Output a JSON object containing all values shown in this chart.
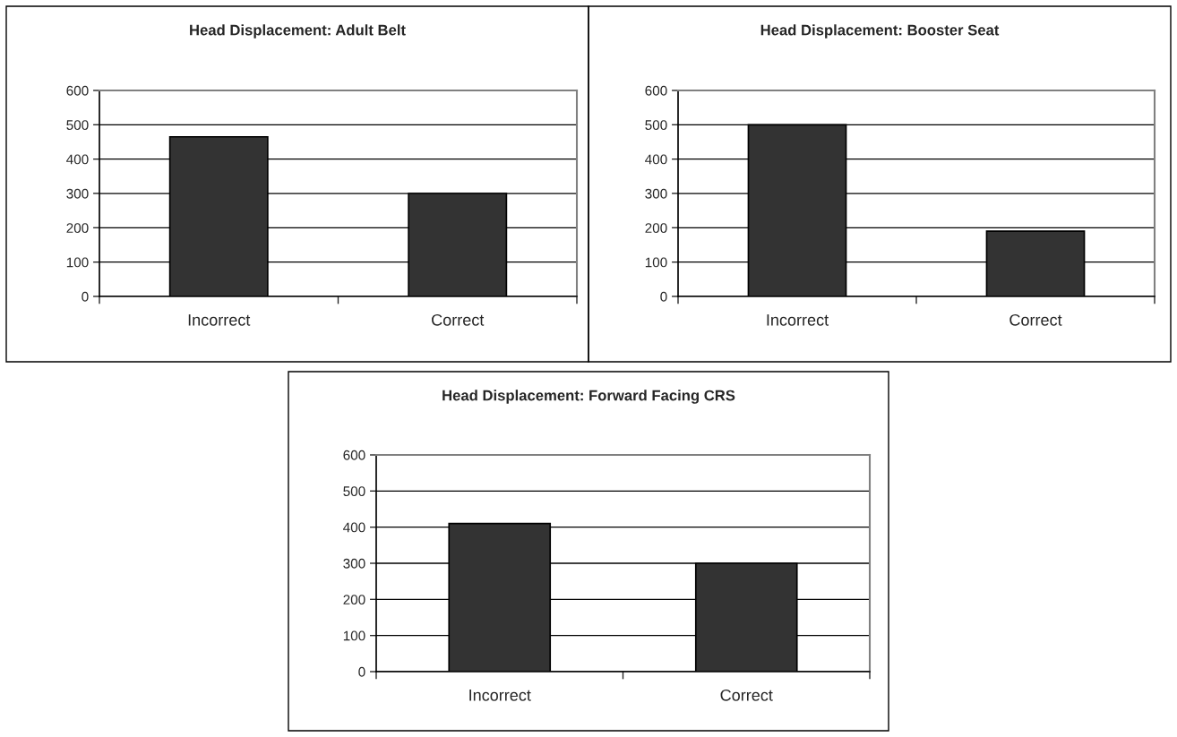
{
  "chart_data": [
    {
      "type": "bar",
      "title": "Head Displacement: Adult Belt",
      "categories": [
        "Incorrect",
        "Correct"
      ],
      "values": [
        465,
        300
      ],
      "color": "#333333",
      "ylim": [
        0,
        600
      ],
      "yticks": [
        0,
        100,
        200,
        300,
        400,
        500,
        600
      ],
      "grid": "y",
      "legend": false
    },
    {
      "type": "bar",
      "title": "Head Displacement: Booster Seat",
      "categories": [
        "Incorrect",
        "Correct"
      ],
      "values": [
        500,
        190
      ],
      "color": "#333333",
      "ylim": [
        0,
        600
      ],
      "yticks": [
        0,
        100,
        200,
        300,
        400,
        500,
        600
      ],
      "grid": "y",
      "legend": false
    },
    {
      "type": "bar",
      "title": "Head Displacement: Forward Facing CRS",
      "categories": [
        "Incorrect",
        "Correct"
      ],
      "values": [
        410,
        300
      ],
      "color": "#333333",
      "ylim": [
        0,
        600
      ],
      "yticks": [
        0,
        100,
        200,
        300,
        400,
        500,
        600
      ],
      "grid": "y",
      "legend": false
    }
  ]
}
